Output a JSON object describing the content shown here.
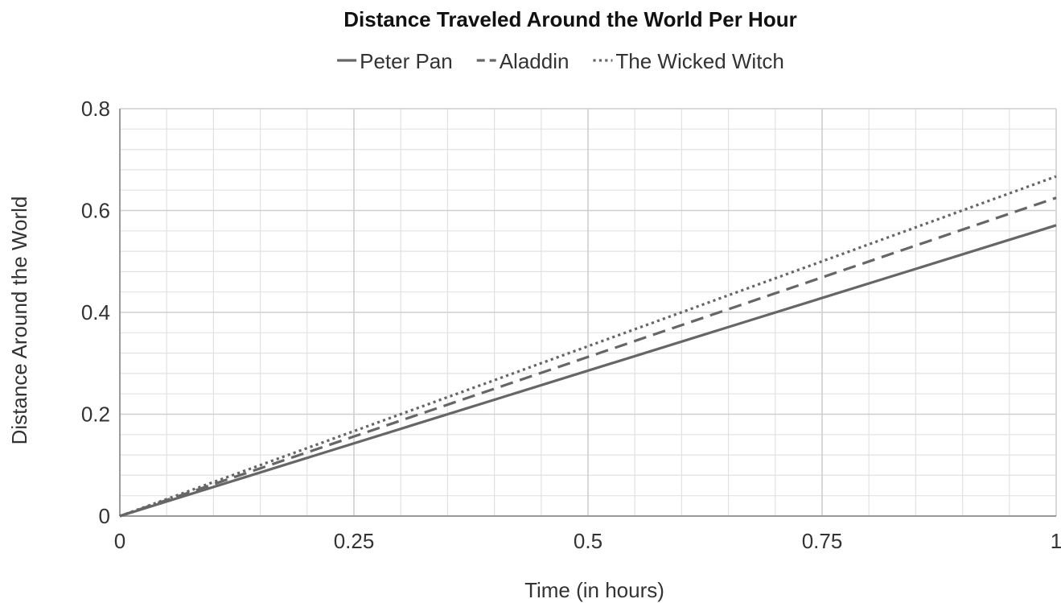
{
  "chart_data": {
    "type": "line",
    "title": "Distance Traveled Around the World Per Hour",
    "xlabel": "Time (in hours)",
    "ylabel": "Distance Around the World",
    "xlim": [
      0,
      1
    ],
    "ylim": [
      0,
      0.8
    ],
    "x_ticks": [
      "0",
      "0.25",
      "0.5",
      "0.75",
      "1"
    ],
    "y_ticks": [
      "0",
      "0.2",
      "0.4",
      "0.6",
      "0.8"
    ],
    "x_tick_values": [
      0,
      0.25,
      0.5,
      0.75,
      1
    ],
    "y_tick_values": [
      0,
      0.2,
      0.4,
      0.6,
      0.8
    ],
    "x_minor_step": 0.05,
    "y_minor_step": 0.04,
    "grid": true,
    "legend_position": "top",
    "series": [
      {
        "name": "Peter Pan",
        "style": "solid",
        "color": "#666666",
        "x": [
          0,
          1
        ],
        "y": [
          0,
          0.571
        ]
      },
      {
        "name": "Aladdin",
        "style": "dashed",
        "color": "#666666",
        "x": [
          0,
          1
        ],
        "y": [
          0,
          0.625
        ]
      },
      {
        "name": "The Wicked Witch",
        "style": "dotted",
        "color": "#666666",
        "x": [
          0,
          1
        ],
        "y": [
          0,
          0.667
        ]
      }
    ]
  }
}
